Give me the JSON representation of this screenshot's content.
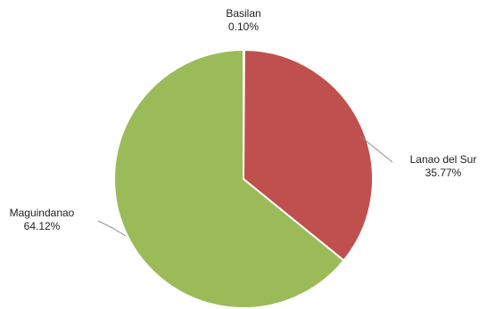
{
  "chart_data": {
    "type": "pie",
    "title": "",
    "slices": [
      {
        "label": "Basilan",
        "value": 0.1,
        "value_label": "0.10%",
        "color": "#4f81bd"
      },
      {
        "label": "Lanao del Sur",
        "value": 35.77,
        "value_label": "35.77%",
        "color": "#c0504d"
      },
      {
        "label": "Maguindanao",
        "value": 64.12,
        "value_label": "64.12%",
        "color": "#9bbb59"
      }
    ],
    "start_angle_deg": 0,
    "direction": "clockwise",
    "legend": "none",
    "labels_outside_with_leader_lines": true
  }
}
